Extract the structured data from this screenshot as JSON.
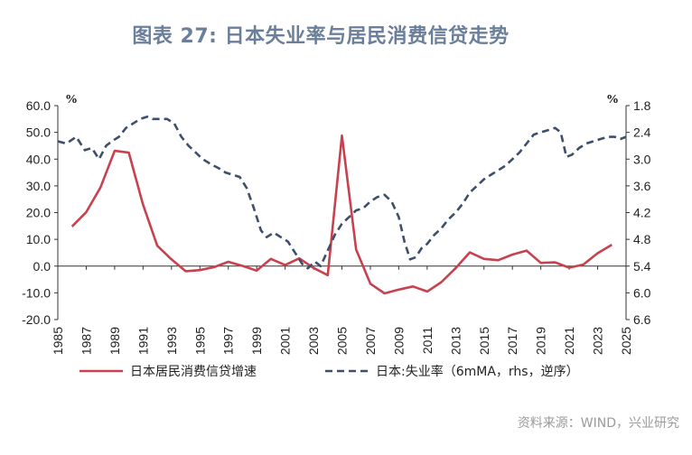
{
  "header": {
    "title": "图表 27: 日本失业率与居民消费信贷走势"
  },
  "footer": {
    "source": "资料来源：WIND，兴业研究"
  },
  "chart_data": {
    "type": "line",
    "left_axis": {
      "unit": "%",
      "ticks": [
        "60.0",
        "50.0",
        "40.0",
        "30.0",
        "20.0",
        "10.0",
        "0.0",
        "-10.0",
        "-20.0"
      ],
      "ylim": [
        -20,
        60
      ]
    },
    "right_axis": {
      "unit": "%",
      "ticks": [
        "1.8",
        "2.4",
        "3.0",
        "3.6",
        "4.2",
        "4.8",
        "5.4",
        "6.0",
        "6.6"
      ],
      "ylim": [
        6.6,
        1.8
      ],
      "inverted": true
    },
    "x_axis": {
      "ticks": [
        "1985",
        "1987",
        "1989",
        "1991",
        "1993",
        "1995",
        "1997",
        "1999",
        "2001",
        "2003",
        "2005",
        "2007",
        "2009",
        "2011",
        "2013",
        "2015",
        "2017",
        "2019",
        "2021",
        "2023",
        "2025"
      ],
      "xlim": [
        1985,
        2025
      ]
    },
    "series": [
      {
        "name": "日本居民消费信贷增速",
        "axis": "left",
        "color": "#c8414f",
        "style": "solid",
        "points": [
          [
            1986,
            14.8
          ],
          [
            1987,
            20.2
          ],
          [
            1988,
            29.4
          ],
          [
            1989,
            43.1
          ],
          [
            1990,
            42.4
          ],
          [
            1991,
            23.0
          ],
          [
            1992,
            7.6
          ],
          [
            1993,
            2.5
          ],
          [
            1994,
            -1.9
          ],
          [
            1995,
            -1.5
          ],
          [
            1996,
            -0.4
          ],
          [
            1997,
            1.6
          ],
          [
            1998,
            0.1
          ],
          [
            1999,
            -1.7
          ],
          [
            2000,
            2.7
          ],
          [
            2001,
            0.4
          ],
          [
            2002,
            2.9
          ],
          [
            2003,
            -0.7
          ],
          [
            2004,
            -3.4
          ],
          [
            2005,
            48.8
          ],
          [
            2006,
            6.2
          ],
          [
            2007,
            -6.6
          ],
          [
            2008,
            -10.2
          ],
          [
            2009,
            -8.8
          ],
          [
            2010,
            -7.6
          ],
          [
            2011,
            -9.5
          ],
          [
            2012,
            -6.0
          ],
          [
            2013,
            -0.8
          ],
          [
            2014,
            5.1
          ],
          [
            2015,
            2.7
          ],
          [
            2016,
            2.2
          ],
          [
            2017,
            4.3
          ],
          [
            2018,
            5.8
          ],
          [
            2019,
            1.2
          ],
          [
            2020,
            1.4
          ],
          [
            2021,
            -0.6
          ],
          [
            2022,
            0.6
          ],
          [
            2023,
            4.8
          ],
          [
            2024,
            8.0
          ]
        ]
      },
      {
        "name": "日本:失业率（6mMA，rhs，逆序）",
        "axis": "right",
        "color": "#3e4f6b",
        "style": "dashed",
        "points": [
          [
            1985.0,
            2.6
          ],
          [
            1985.6,
            2.65
          ],
          [
            1986.3,
            2.5
          ],
          [
            1986.9,
            2.8
          ],
          [
            1987.4,
            2.75
          ],
          [
            1987.9,
            3.0
          ],
          [
            1988.4,
            2.7
          ],
          [
            1988.8,
            2.6
          ],
          [
            1989.3,
            2.5
          ],
          [
            1989.8,
            2.3
          ],
          [
            1990.3,
            2.2
          ],
          [
            1990.8,
            2.1
          ],
          [
            1991.3,
            2.05
          ],
          [
            1991.7,
            2.1
          ],
          [
            1992.2,
            2.1
          ],
          [
            1992.7,
            2.1
          ],
          [
            1993.2,
            2.2
          ],
          [
            1993.7,
            2.5
          ],
          [
            1994.2,
            2.7
          ],
          [
            1994.7,
            2.85
          ],
          [
            1995.2,
            3.0
          ],
          [
            1995.7,
            3.1
          ],
          [
            1996.3,
            3.2
          ],
          [
            1996.8,
            3.3
          ],
          [
            1997.3,
            3.35
          ],
          [
            1997.8,
            3.4
          ],
          [
            1998.3,
            3.65
          ],
          [
            1998.8,
            4.1
          ],
          [
            1999.3,
            4.6
          ],
          [
            1999.7,
            4.75
          ],
          [
            2000.2,
            4.65
          ],
          [
            2000.7,
            4.75
          ],
          [
            2001.2,
            4.85
          ],
          [
            2001.7,
            5.1
          ],
          [
            2002.2,
            5.35
          ],
          [
            2002.6,
            5.45
          ],
          [
            2003.1,
            5.3
          ],
          [
            2003.5,
            5.4
          ],
          [
            2004.0,
            5.05
          ],
          [
            2004.5,
            4.7
          ],
          [
            2005.0,
            4.45
          ],
          [
            2005.5,
            4.3
          ],
          [
            2006.0,
            4.15
          ],
          [
            2006.5,
            4.1
          ],
          [
            2007.0,
            3.95
          ],
          [
            2007.5,
            3.85
          ],
          [
            2008.0,
            3.8
          ],
          [
            2008.5,
            3.95
          ],
          [
            2009.0,
            4.3
          ],
          [
            2009.4,
            4.85
          ],
          [
            2009.8,
            5.25
          ],
          [
            2010.2,
            5.2
          ],
          [
            2010.6,
            5.0
          ],
          [
            2011.0,
            4.9
          ],
          [
            2011.5,
            4.7
          ],
          [
            2012.0,
            4.55
          ],
          [
            2012.5,
            4.35
          ],
          [
            2013.0,
            4.2
          ],
          [
            2013.5,
            4.0
          ],
          [
            2014.0,
            3.75
          ],
          [
            2014.5,
            3.6
          ],
          [
            2015.0,
            3.45
          ],
          [
            2015.5,
            3.35
          ],
          [
            2016.0,
            3.25
          ],
          [
            2016.5,
            3.15
          ],
          [
            2017.0,
            3.0
          ],
          [
            2017.5,
            2.85
          ],
          [
            2018.0,
            2.65
          ],
          [
            2018.5,
            2.45
          ],
          [
            2019.0,
            2.4
          ],
          [
            2019.5,
            2.35
          ],
          [
            2020.0,
            2.3
          ],
          [
            2020.4,
            2.4
          ],
          [
            2020.8,
            2.95
          ],
          [
            2021.2,
            2.9
          ],
          [
            2021.7,
            2.75
          ],
          [
            2022.2,
            2.65
          ],
          [
            2022.7,
            2.6
          ],
          [
            2023.2,
            2.55
          ],
          [
            2023.7,
            2.5
          ],
          [
            2024.2,
            2.5
          ],
          [
            2024.6,
            2.55
          ],
          [
            2025.0,
            2.5
          ]
        ]
      }
    ],
    "legend": {
      "placement": "bottom"
    },
    "grid": false
  }
}
